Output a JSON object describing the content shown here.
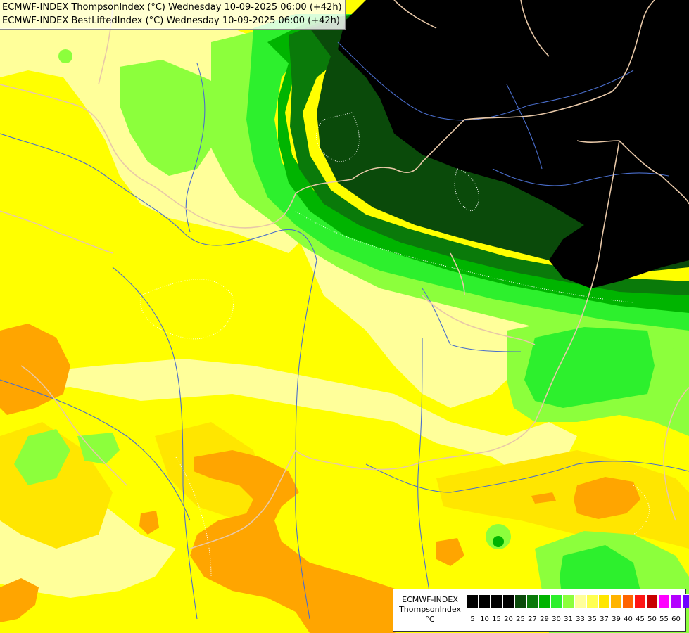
{
  "header": {
    "line1": "ECMWF-INDEX ThompsonIndex (°C) Wednesday 10-09-2025 06:00 (+42h)",
    "line2": "ECMWF-INDEX BestLiftedIndex (°C) Wednesday 10-09-2025 06:00 (+42h)"
  },
  "legend": {
    "title1": "ECMWF-INDEX",
    "title2": "ThompsonIndex",
    "unit": "°C",
    "swatch_colors": [
      "#000000",
      "#000000",
      "#000000",
      "#000000",
      "#0a4a0a",
      "#0a7a0a",
      "#00b400",
      "#2df02d",
      "#8cff3c",
      "#ffff9a",
      "#ffff50",
      "#ffe600",
      "#ffb400",
      "#ff6400",
      "#ff1414",
      "#c80000",
      "#ff00ff",
      "#b400ff",
      "#6e00ff",
      "#0000ff"
    ],
    "ticks": [
      "5",
      "10",
      "15",
      "20",
      "25",
      "27",
      "29",
      "30",
      "31",
      "33",
      "35",
      "37",
      "39",
      "40",
      "45",
      "50",
      "55",
      "60"
    ]
  },
  "map_layers": {
    "field_colors": {
      "black": "#000000",
      "very_dark_green": "#0a4a0a",
      "dark_green": "#0a7a0a",
      "green": "#00b400",
      "light_green": "#2df02d",
      "yellow_green": "#8cff3c",
      "pale_yellow": "#ffff9a",
      "yellow": "#ffff00",
      "gold": "#ffe600",
      "orange": "#ffa500"
    },
    "border_color": "#e8c8a8",
    "river_color": "#4a6ecc",
    "contour_color": "#ffffff"
  }
}
